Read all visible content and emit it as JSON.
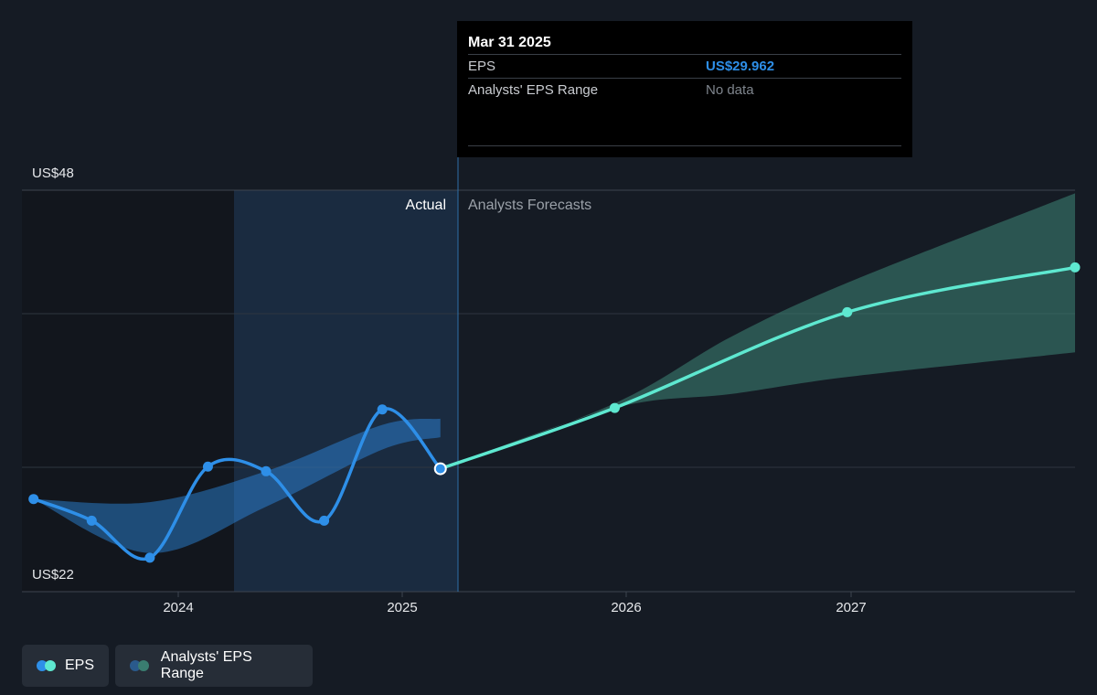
{
  "chart_data": {
    "type": "line",
    "y_axis": {
      "ticks": [
        "US$48",
        "US$22"
      ],
      "ylim": [
        22,
        48
      ]
    },
    "x_axis": {
      "ticks": [
        "2024",
        "2025",
        "2026",
        "2027"
      ],
      "xlim": [
        2023.45,
        2027.98
      ]
    },
    "regions": {
      "actual_label": "Actual",
      "forecast_label": "Analysts Forecasts"
    },
    "series": [
      {
        "name": "EPS",
        "color": "#2e8fe8",
        "points": [
          {
            "x": 2023.5,
            "y": 28.0
          },
          {
            "x": 2023.75,
            "y": 26.6
          },
          {
            "x": 2024.0,
            "y": 24.2
          },
          {
            "x": 2024.25,
            "y": 30.1
          },
          {
            "x": 2024.5,
            "y": 29.8
          },
          {
            "x": 2024.75,
            "y": 26.6
          },
          {
            "x": 2025.0,
            "y": 33.8
          },
          {
            "x": 2025.25,
            "y": 29.962
          }
        ]
      },
      {
        "name": "EPS forecast",
        "color": "#5ee8d0",
        "points": [
          {
            "x": 2025.25,
            "y": 29.962
          },
          {
            "x": 2026.0,
            "y": 33.9
          },
          {
            "x": 2027.0,
            "y": 40.1
          },
          {
            "x": 2027.98,
            "y": 43.0
          }
        ]
      }
    ],
    "ranges": [
      {
        "name": "Analysts' EPS Range",
        "color": "#2e8fe8",
        "x": [
          2023.5,
          2024.0,
          2024.5,
          2025.0,
          2025.25
        ],
        "low": [
          28.0,
          24.5,
          27.5,
          31.2,
          32.0
        ],
        "high": [
          28.0,
          27.8,
          29.8,
          32.8,
          33.2
        ]
      },
      {
        "name": "Analysts' EPS Range",
        "color": "#3a7d70",
        "x": [
          2025.25,
          2026.0,
          2026.5,
          2027.0,
          2027.98
        ],
        "low": [
          29.962,
          33.9,
          34.8,
          35.9,
          37.5
        ],
        "high": [
          29.962,
          34.2,
          38.5,
          42.0,
          47.8
        ]
      }
    ],
    "legend": [
      "EPS",
      "Analysts' EPS Range"
    ],
    "legend_position": "bottom-left"
  },
  "tooltip": {
    "date": "Mar 31 2025",
    "eps_label": "EPS",
    "eps_value": "US$29.962",
    "range_label": "Analysts' EPS Range",
    "range_value": "No data"
  },
  "legend": {
    "eps_label": "EPS",
    "range_label": "Analysts' EPS Range"
  },
  "colors": {
    "background": "#151b24",
    "actual_shade": "#1b2e45",
    "eps_actual": "#2e8fe8",
    "eps_forecast": "#5ee8d0",
    "forecast_range": "#3a7d70"
  }
}
